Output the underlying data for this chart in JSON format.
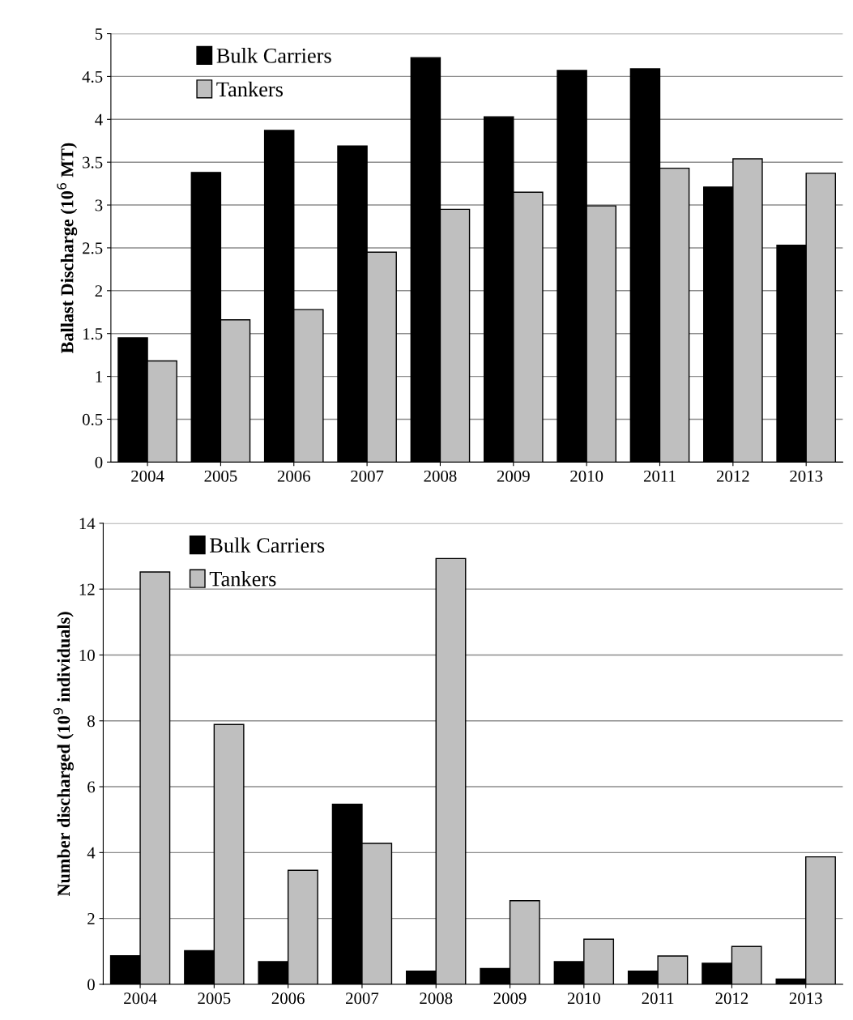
{
  "chart_data": [
    {
      "type": "bar",
      "ylabel": "Ballast Discharge (10$^{6}$ MT)",
      "categories": [
        "2004",
        "2005",
        "2006",
        "2007",
        "2008",
        "2009",
        "2010",
        "2011",
        "2012",
        "2013"
      ],
      "series": [
        {
          "name": "Bulk Carriers",
          "color": "#000000",
          "values": [
            1.45,
            3.38,
            3.87,
            3.69,
            4.72,
            4.03,
            4.57,
            4.59,
            3.21,
            2.53
          ]
        },
        {
          "name": "Tankers",
          "color": "#bfbfbf",
          "values": [
            1.18,
            1.66,
            1.78,
            2.45,
            2.95,
            3.15,
            2.99,
            3.43,
            3.54,
            3.37
          ]
        }
      ],
      "ylim": [
        0,
        5
      ],
      "yticks": [
        0,
        0.5,
        1,
        1.5,
        2,
        2.5,
        3,
        3.5,
        4,
        4.5,
        5
      ],
      "grid": "y",
      "legend": "top left"
    },
    {
      "type": "bar",
      "ylabel": "Number discharged (10$^{9}$ individuals)",
      "categories": [
        "2004",
        "2005",
        "2006",
        "2007",
        "2008",
        "2009",
        "2010",
        "2011",
        "2012",
        "2013"
      ],
      "series": [
        {
          "name": "Bulk Carriers",
          "color": "#000000",
          "values": [
            0.87,
            1.02,
            0.69,
            5.47,
            0.4,
            0.48,
            0.69,
            0.4,
            0.64,
            0.16
          ]
        },
        {
          "name": "Tankers",
          "color": "#bfbfbf",
          "values": [
            12.52,
            7.89,
            3.46,
            4.28,
            12.93,
            2.54,
            1.37,
            0.86,
            1.15,
            3.87
          ]
        }
      ],
      "ylim": [
        0,
        14
      ],
      "yticks": [
        0,
        2,
        4,
        6,
        8,
        10,
        12,
        14
      ],
      "grid": "y",
      "legend": "top left"
    }
  ]
}
